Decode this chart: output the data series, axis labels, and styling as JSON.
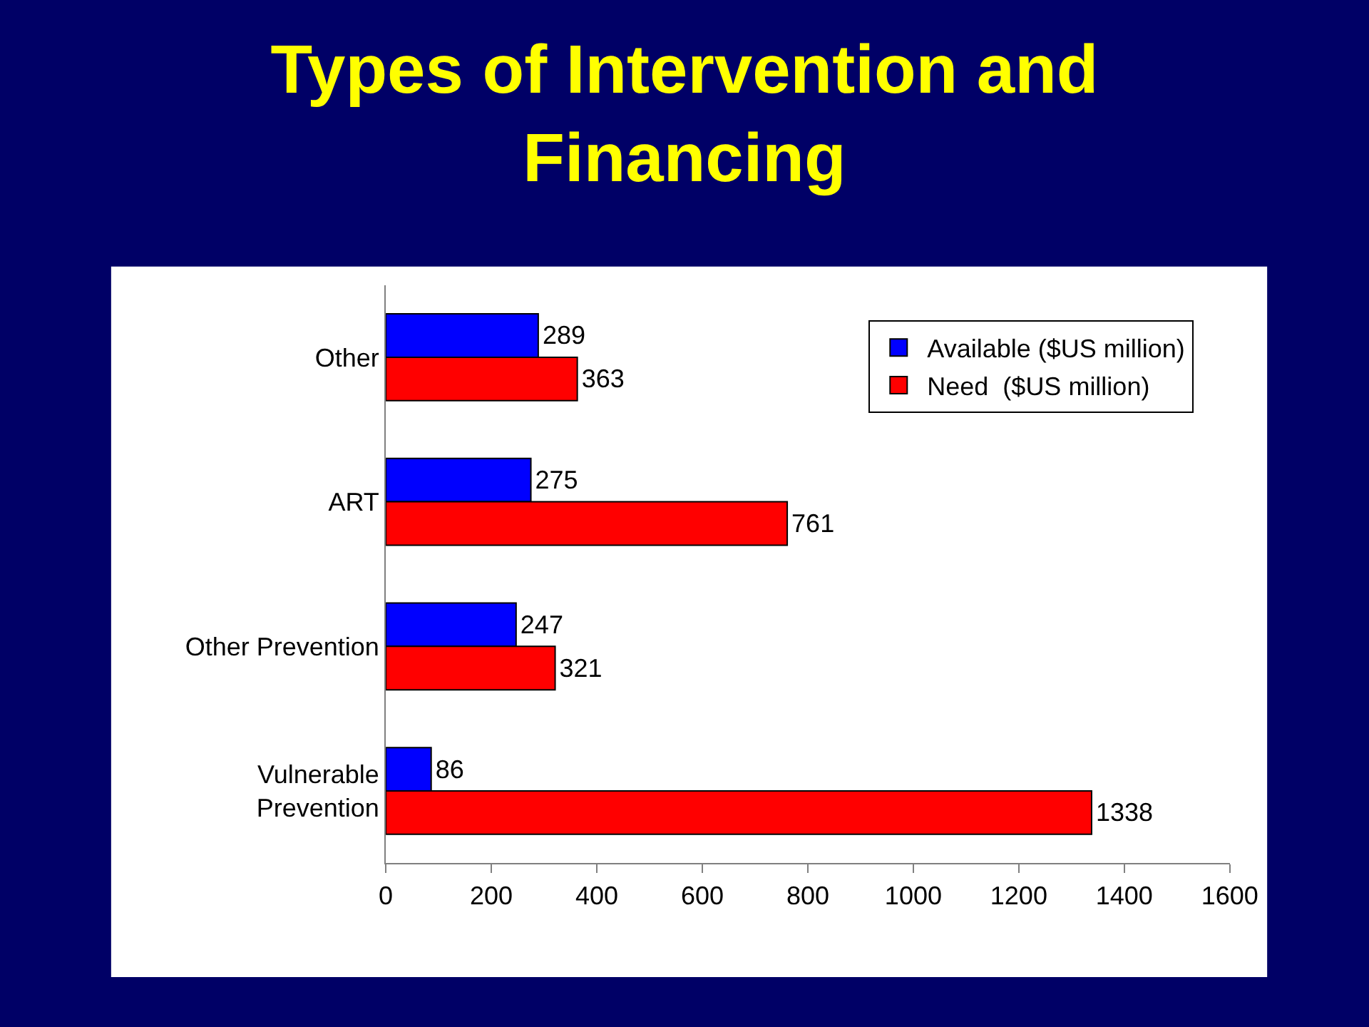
{
  "chart_data": {
    "type": "bar",
    "orientation": "horizontal",
    "title": "Types of Intervention and Financing",
    "categories": [
      "Other",
      "ART",
      "Other Prevention",
      "Vulnerable Prevention"
    ],
    "series": [
      {
        "name": "Available ($US million)",
        "color": "#0000ff",
        "values": [
          289,
          275,
          247,
          86
        ]
      },
      {
        "name": "Need  ($US million)",
        "color": "#ff0000",
        "values": [
          363,
          761,
          321,
          1338
        ]
      }
    ],
    "xlim": [
      0,
      1600
    ],
    "xticks": [
      0,
      200,
      400,
      600,
      800,
      1000,
      1200,
      1400,
      1600
    ],
    "data_labels": true,
    "grid": false,
    "legend": "top right"
  }
}
